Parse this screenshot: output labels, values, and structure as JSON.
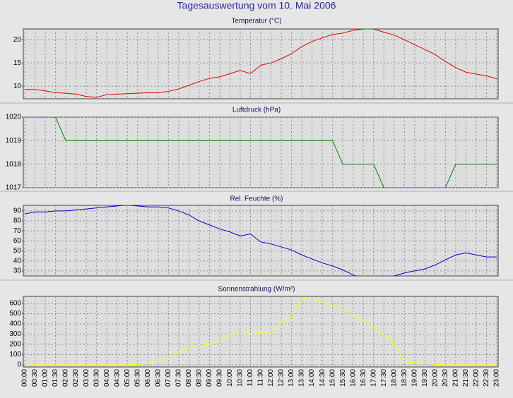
{
  "title": "Tagesauswertung vom 10. Mai 2006",
  "chart_data": [
    {
      "type": "line",
      "title": "Temperatur (°C)",
      "color": "#e00000",
      "values": [
        9.3,
        9.3,
        9.0,
        8.6,
        8.5,
        8.3,
        7.8,
        7.6,
        8.2,
        8.3,
        8.4,
        8.5,
        8.6,
        8.6,
        8.9,
        9.4,
        10.2,
        11.0,
        11.7,
        12.0,
        12.7,
        13.4,
        12.7,
        14.5,
        15.0,
        15.9,
        17.0,
        18.5,
        19.6,
        20.4,
        21.1,
        21.4,
        22.0,
        22.3,
        22.3,
        21.6,
        21.0,
        20.0,
        18.9,
        17.9,
        16.8,
        15.3,
        14.0,
        13.0,
        12.6,
        12.2,
        11.6
      ],
      "ylim": [
        7.3,
        22.3
      ],
      "yticks": [
        10,
        15,
        20
      ],
      "grid": true
    },
    {
      "type": "line",
      "title": "Luftdruck (hPa)",
      "color": "#008000",
      "values": [
        1020,
        1020,
        1020,
        1020,
        1019,
        1019,
        1019,
        1019,
        1019,
        1019,
        1019,
        1019,
        1019,
        1019,
        1019,
        1019,
        1019,
        1019,
        1019,
        1019,
        1019,
        1019,
        1019,
        1019,
        1019,
        1019,
        1019,
        1019,
        1019,
        1019,
        1019,
        1018,
        1018,
        1018,
        1018,
        1017,
        1017,
        1017,
        1017,
        1017,
        1017,
        1017,
        1018,
        1018,
        1018,
        1018,
        1018
      ],
      "ylim": [
        1017,
        1020
      ],
      "yticks": [
        1017,
        1018,
        1019,
        1020
      ],
      "grid": true
    },
    {
      "type": "line",
      "title": "Rel. Feuchte (%)",
      "color": "#0000c0",
      "values": [
        87,
        89,
        89,
        90,
        90,
        91,
        92,
        93,
        94,
        95,
        96,
        95,
        94,
        94,
        93,
        90,
        86,
        80,
        76,
        72,
        69,
        65,
        67,
        59,
        57,
        54,
        51,
        46,
        42,
        38,
        35,
        31,
        26,
        22,
        22,
        24,
        25,
        28,
        30,
        32,
        36,
        41,
        46,
        48,
        46,
        44,
        44
      ],
      "ylim": [
        25,
        95.6
      ],
      "yticks": [
        30,
        40,
        50,
        60,
        70,
        80,
        90
      ],
      "grid": true
    },
    {
      "type": "line",
      "title": "Sonnenstrahlung (W/m²)",
      "color": "#ffff00",
      "categories": [
        "00:00",
        "00:30",
        "01:00",
        "01:30",
        "02:00",
        "02:30",
        "03:00",
        "03:30",
        "04:00",
        "04:30",
        "05:00",
        "05:30",
        "06:00",
        "06:30",
        "07:00",
        "07:30",
        "08:00",
        "08:30",
        "09:00",
        "09:30",
        "10:00",
        "10:30",
        "11:00",
        "11:30",
        "12:00",
        "12:30",
        "13:00",
        "13:30",
        "14:00",
        "14:30",
        "15:00",
        "15:30",
        "16:00",
        "16:30",
        "17:00",
        "17:30",
        "18:00",
        "18:30",
        "19:00",
        "19:30",
        "20:00",
        "20:30",
        "21:00",
        "21:30",
        "22:00",
        "22:30",
        "23:00"
      ],
      "values": [
        0,
        0,
        0,
        0,
        0,
        0,
        0,
        0,
        0,
        0,
        0,
        5,
        15,
        35,
        70,
        120,
        170,
        190,
        200,
        230,
        290,
        330,
        300,
        320,
        300,
        420,
        470,
        650,
        640,
        620,
        580,
        540,
        490,
        430,
        360,
        300,
        200,
        30,
        20,
        15,
        5,
        0,
        0,
        0,
        0,
        0,
        0
      ],
      "ylim": [
        -21,
        669
      ],
      "yticks": [
        0,
        100,
        200,
        300,
        400,
        500,
        600
      ],
      "grid": true
    }
  ]
}
